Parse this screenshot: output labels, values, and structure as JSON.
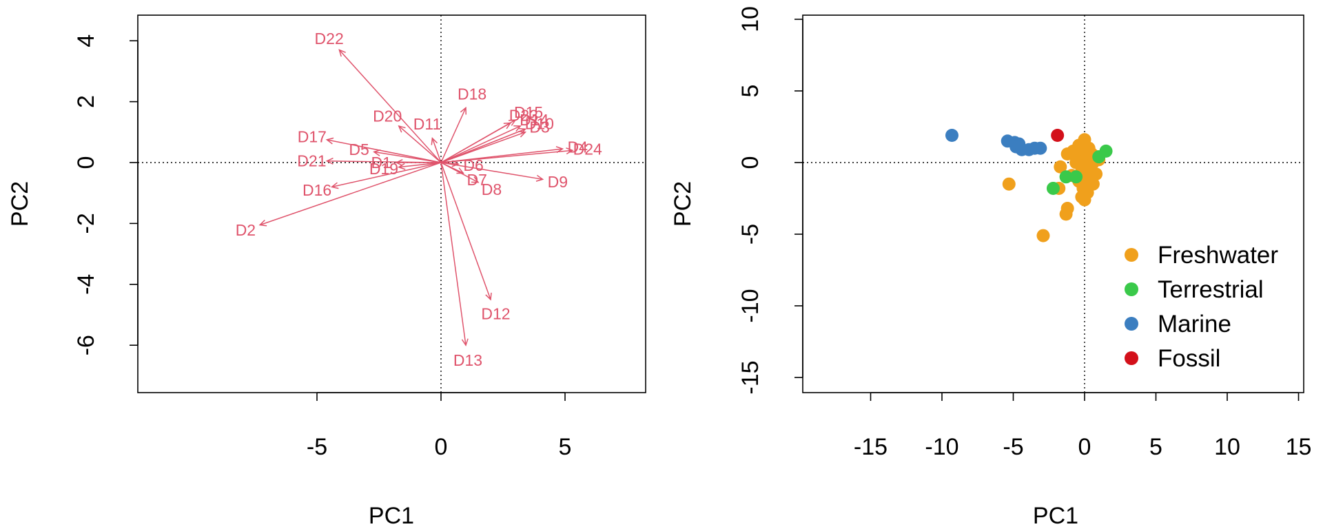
{
  "chart_data": [
    {
      "type": "biplot",
      "xlabel": "PC1",
      "ylabel": "PC2",
      "xlim": [
        -9.5,
        6.5
      ],
      "ylim": [
        -7.5,
        4.9
      ],
      "xticks": [
        -5,
        0,
        5
      ],
      "yticks": [
        4,
        2,
        0,
        -2,
        -4,
        -6
      ],
      "reference_lines": "dotted at x=0 and y=0",
      "arrow_color": "#DF536B",
      "vectors": [
        {
          "label": "D22",
          "x": -4.1,
          "y": 3.7
        },
        {
          "label": "D20",
          "x": -1.7,
          "y": 1.2
        },
        {
          "label": "D11",
          "x": -0.35,
          "y": 0.8
        },
        {
          "label": "D18",
          "x": 1.0,
          "y": 1.8
        },
        {
          "label": "D23",
          "x": 2.8,
          "y": 1.3
        },
        {
          "label": "D15",
          "x": 3.0,
          "y": 1.4
        },
        {
          "label": "D14",
          "x": 3.2,
          "y": 1.2
        },
        {
          "label": "D10",
          "x": 3.4,
          "y": 1.1
        },
        {
          "label": "D3",
          "x": 3.4,
          "y": 1.0
        },
        {
          "label": "D4",
          "x": 4.9,
          "y": 0.45
        },
        {
          "label": "D24",
          "x": 5.3,
          "y": 0.4
        },
        {
          "label": "D17",
          "x": -4.6,
          "y": 0.75
        },
        {
          "label": "D5",
          "x": -2.7,
          "y": 0.35
        },
        {
          "label": "D21",
          "x": -4.6,
          "y": 0.05
        },
        {
          "label": "D1",
          "x": -1.8,
          "y": 0.0
        },
        {
          "label": "D19",
          "x": -1.7,
          "y": -0.15
        },
        {
          "label": "D6",
          "x": 0.7,
          "y": -0.05
        },
        {
          "label": "D7",
          "x": 0.9,
          "y": -0.35
        },
        {
          "label": "D8",
          "x": 1.5,
          "y": -0.65
        },
        {
          "label": "D9",
          "x": 4.1,
          "y": -0.55
        },
        {
          "label": "D16",
          "x": -4.4,
          "y": -0.8
        },
        {
          "label": "D2",
          "x": -7.3,
          "y": -2.05
        },
        {
          "label": "D12",
          "x": 2.0,
          "y": -4.5
        },
        {
          "label": "D13",
          "x": 1.0,
          "y": -6.0
        }
      ]
    },
    {
      "type": "scatter",
      "xlabel": "PC1",
      "ylabel": "PC2",
      "xlim": [
        -19.5,
        15.5
      ],
      "ylim": [
        -16.2,
        10.2
      ],
      "xticks": [
        -15,
        -10,
        -5,
        0,
        5,
        10,
        15
      ],
      "yticks": [
        10,
        5,
        0,
        -5,
        -10,
        -15
      ],
      "reference_lines": "dotted at x=0 and y=0",
      "legend": "bottom-right",
      "series": [
        {
          "name": "Freshwater",
          "color": "#F0A01C",
          "points": [
            [
              0.0,
              1.6
            ],
            [
              -0.4,
              1.2
            ],
            [
              0.3,
              1.0
            ],
            [
              -0.8,
              0.8
            ],
            [
              0.5,
              0.6
            ],
            [
              -1.2,
              0.6
            ],
            [
              0.9,
              0.4
            ],
            [
              -0.3,
              0.4
            ],
            [
              0.2,
              0.2
            ],
            [
              0.6,
              0.0
            ],
            [
              -0.6,
              0.0
            ],
            [
              0.0,
              -0.2
            ],
            [
              -1.7,
              -0.3
            ],
            [
              0.4,
              -0.5
            ],
            [
              -0.2,
              -0.6
            ],
            [
              0.8,
              -0.8
            ],
            [
              -0.9,
              -0.9
            ],
            [
              0.3,
              -1.1
            ],
            [
              -0.4,
              -1.3
            ],
            [
              0.6,
              -1.5
            ],
            [
              -0.1,
              -1.8
            ],
            [
              0.2,
              -2.1
            ],
            [
              -0.2,
              -2.4
            ],
            [
              0.0,
              -2.6
            ],
            [
              -5.3,
              -1.5
            ],
            [
              -1.8,
              -1.8
            ],
            [
              -1.2,
              -3.2
            ],
            [
              -1.3,
              -3.6
            ],
            [
              -2.9,
              -5.1
            ],
            [
              1.0,
              0.2
            ],
            [
              -0.5,
              0.9
            ]
          ]
        },
        {
          "name": "Terrestrial",
          "color": "#3AC94A",
          "points": [
            [
              1.5,
              0.8
            ],
            [
              1.0,
              0.4
            ],
            [
              -2.2,
              -1.8
            ],
            [
              -1.3,
              -1.0
            ],
            [
              -0.6,
              -1.0
            ]
          ]
        },
        {
          "name": "Marine",
          "color": "#3B7EC0",
          "points": [
            [
              -9.3,
              1.9
            ],
            [
              -5.4,
              1.5
            ],
            [
              -4.9,
              1.4
            ],
            [
              -4.6,
              1.3
            ],
            [
              -4.8,
              1.1
            ],
            [
              -4.4,
              0.9
            ],
            [
              -3.9,
              0.9
            ],
            [
              -3.5,
              1.0
            ],
            [
              -3.1,
              1.0
            ]
          ]
        },
        {
          "name": "Fossil",
          "color": "#D3101A",
          "points": [
            [
              -1.9,
              1.9
            ]
          ]
        }
      ]
    }
  ]
}
